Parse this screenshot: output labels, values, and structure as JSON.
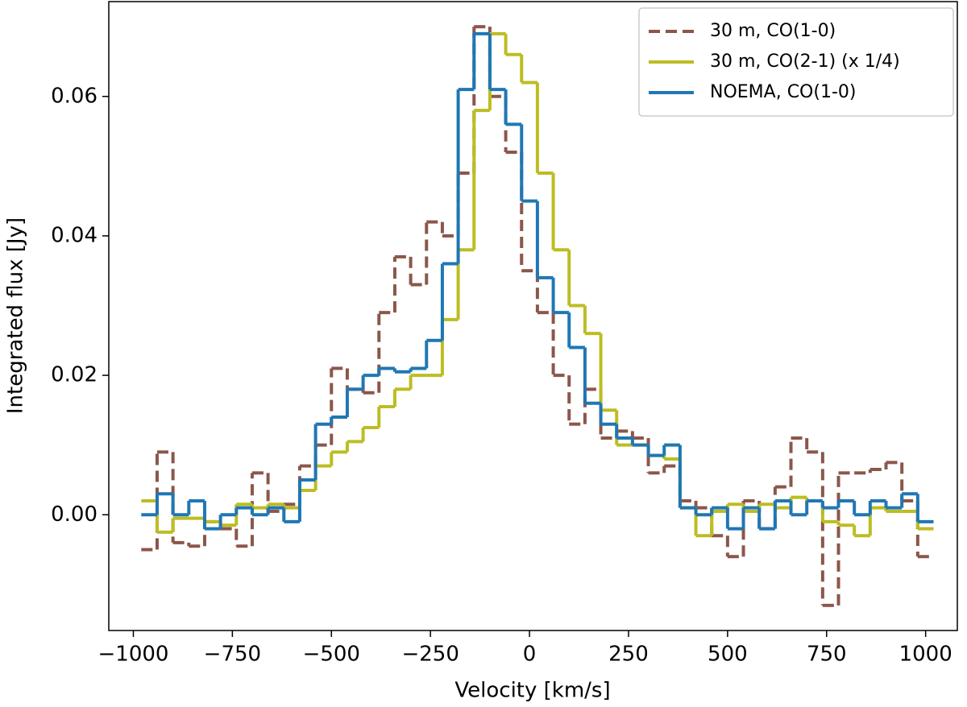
{
  "chart_data": {
    "type": "line",
    "drawstyle": "steps-mid",
    "xlabel": "Velocity [km/s]",
    "ylabel": "Integrated flux [Jy]",
    "x": [
      -960,
      -920,
      -880,
      -840,
      -800,
      -760,
      -720,
      -680,
      -640,
      -600,
      -560,
      -520,
      -480,
      -440,
      -400,
      -360,
      -320,
      -280,
      -240,
      -200,
      -160,
      -120,
      -80,
      -40,
      0,
      40,
      80,
      120,
      160,
      200,
      240,
      280,
      320,
      360,
      400,
      440,
      480,
      520,
      560,
      600,
      640,
      680,
      720,
      760,
      800,
      840,
      880,
      920,
      960,
      1000
    ],
    "series": [
      {
        "name": "30 m, CO(1-0)",
        "color": "#8c564b",
        "dashed": true,
        "values": [
          -0.005,
          0.009,
          -0.004,
          -0.0045,
          -0.001,
          -0.002,
          -0.0045,
          0.006,
          0.0005,
          0.0015,
          0.007,
          0.01,
          0.021,
          0.018,
          0.0175,
          0.029,
          0.037,
          0.033,
          0.042,
          0.04,
          0.049,
          0.07,
          0.06,
          0.052,
          0.035,
          0.029,
          0.02,
          0.013,
          0.018,
          0.011,
          0.012,
          0.011,
          0.006,
          0.007,
          0.002,
          0.001,
          -0.003,
          -0.006,
          0.002,
          -0.002,
          0.004,
          0.011,
          0.009,
          -0.013,
          0.006,
          0.006,
          0.0065,
          0.0075,
          0.002,
          -0.006
        ]
      },
      {
        "name": "30 m, CO(2-1) (x 1/4)",
        "color": "#bcbd22",
        "dashed": false,
        "values": [
          0.002,
          -0.0025,
          -0.0005,
          -0.0005,
          -0.001,
          -0.0015,
          0.0015,
          0.001,
          0.0015,
          0.001,
          0.0035,
          0.007,
          0.009,
          0.0105,
          0.0125,
          0.0155,
          0.018,
          0.02,
          0.02,
          0.028,
          0.038,
          0.058,
          0.069,
          0.066,
          0.062,
          0.049,
          0.038,
          0.03,
          0.026,
          0.015,
          0.01,
          0.01,
          0.0085,
          0.008,
          0.001,
          -0.003,
          0.0005,
          0.0015,
          0.0005,
          0.0015,
          0.001,
          0.0025,
          0.002,
          -0.001,
          -0.0015,
          -0.003,
          0.001,
          0.0005,
          0.0005,
          -0.002
        ]
      },
      {
        "name": "NOEMA, CO(1-0)",
        "color": "#1f77b4",
        "dashed": false,
        "values": [
          0.0,
          0.003,
          0.0,
          0.002,
          -0.002,
          0.0,
          0.001,
          0.0,
          0.001,
          -0.001,
          0.005,
          0.013,
          0.014,
          0.018,
          0.02,
          0.021,
          0.0205,
          0.021,
          0.025,
          0.036,
          0.061,
          0.069,
          0.061,
          0.056,
          0.045,
          0.034,
          0.029,
          0.024,
          0.016,
          0.013,
          0.011,
          0.01,
          0.0085,
          0.01,
          0.001,
          0.0,
          0.001,
          -0.002,
          0.001,
          -0.002,
          0.002,
          0.0,
          0.002,
          0.001,
          0.002,
          0.0,
          0.002,
          0.001,
          0.003,
          -0.001
        ]
      }
    ],
    "xlim": [
      -1062,
      1080
    ],
    "ylim": [
      -0.0166,
      0.0736
    ],
    "xticks": [
      {
        "value": -1000,
        "label": "−1000"
      },
      {
        "value": -750,
        "label": "−750"
      },
      {
        "value": -500,
        "label": "−500"
      },
      {
        "value": -250,
        "label": "−250"
      },
      0,
      250,
      500,
      750,
      1000
    ],
    "yticks": [
      {
        "value": 0,
        "label": "0.00"
      },
      {
        "value": 0.02,
        "label": "0.02"
      },
      {
        "value": 0.04,
        "label": "0.04"
      },
      {
        "value": 0.06,
        "label": "0.06"
      }
    ],
    "legend": "upper right",
    "grid": false
  }
}
